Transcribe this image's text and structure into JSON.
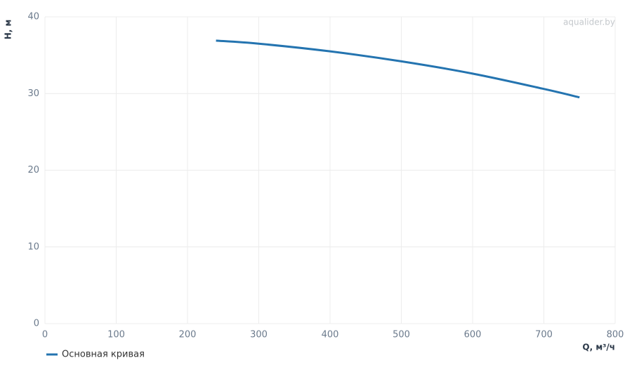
{
  "chart_data": {
    "type": "line",
    "watermark": "aqualider.by",
    "x_label": "Q, м³/ч",
    "y_label": "H, м",
    "x": [
      240,
      300,
      400,
      500,
      600,
      700,
      750
    ],
    "series": [
      {
        "name": "Основная кривая",
        "color": "#2474b0",
        "values": [
          36.9,
          36.5,
          35.5,
          34.2,
          32.6,
          30.6,
          29.5
        ]
      }
    ],
    "xlim": [
      0,
      800
    ],
    "xticks": [
      0,
      100,
      200,
      300,
      400,
      500,
      600,
      700,
      800
    ],
    "ylim": [
      0,
      40
    ],
    "yticks": [
      0,
      10,
      20,
      30,
      40
    ],
    "grid": true,
    "legend": "bottom-left"
  }
}
